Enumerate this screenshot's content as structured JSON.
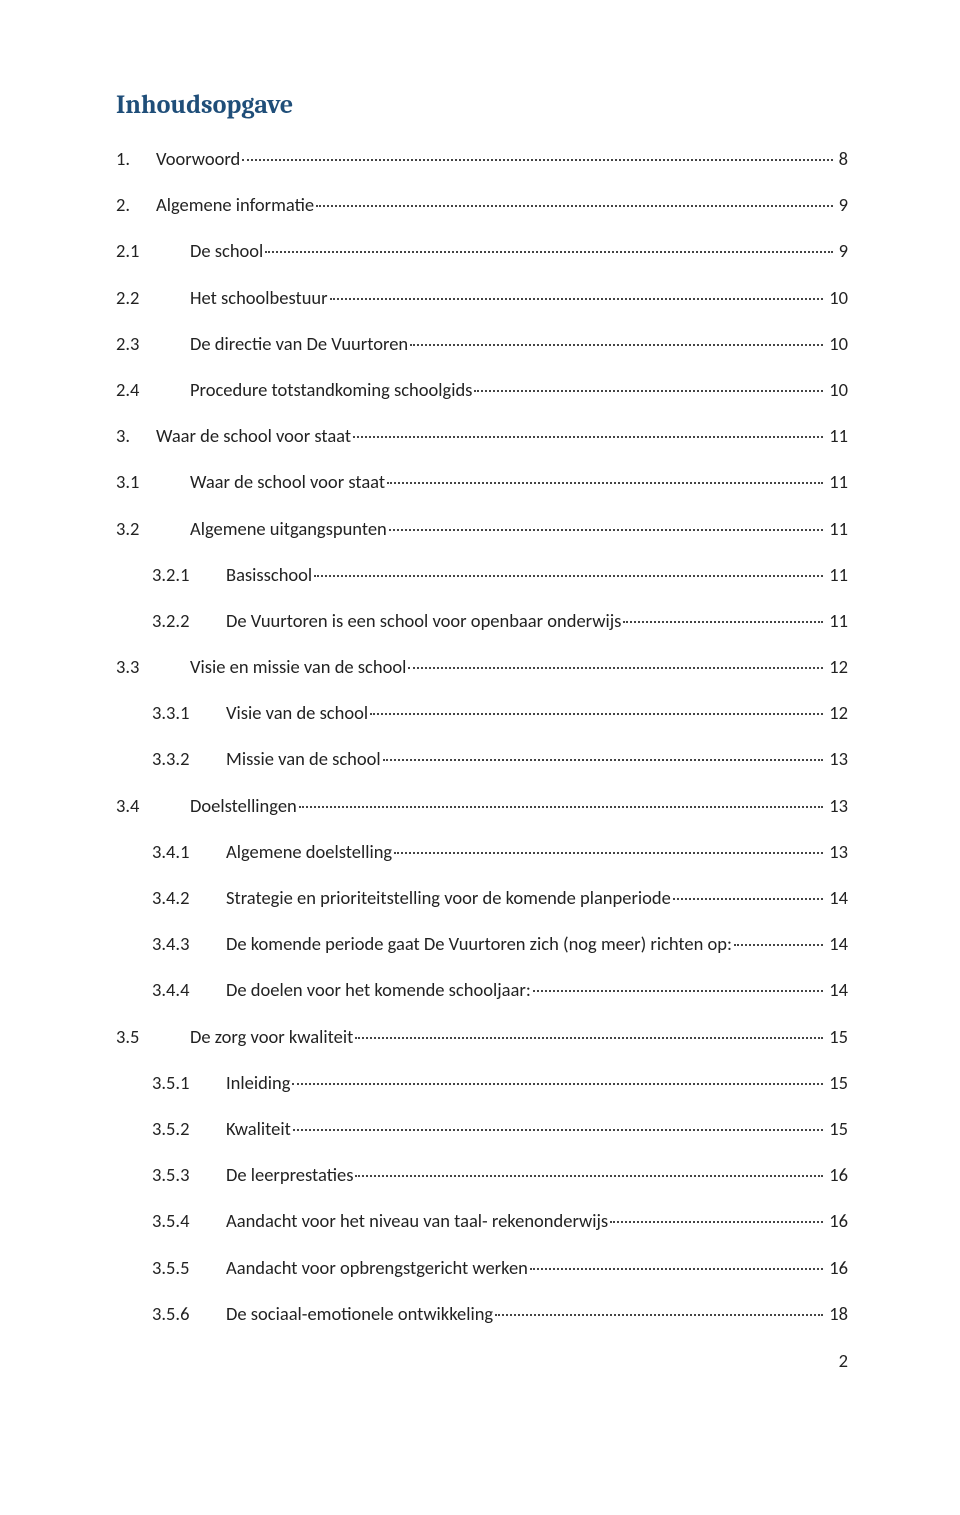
{
  "title": "Inhoudsopgave",
  "colors": {
    "title_color": "#1f4e79",
    "text_color": "#222222",
    "background": "#ffffff",
    "dot_color": "#444444"
  },
  "typography": {
    "title_font": "Cambria",
    "body_font": "Calibri",
    "title_size_pt": 19,
    "body_size_pt": 14,
    "title_weight": "bold"
  },
  "footer_page_number": "2",
  "entries": [
    {
      "level": 0,
      "num": "1.",
      "label": "Voorwoord",
      "page": "8"
    },
    {
      "level": 0,
      "num": "2.",
      "label": "Algemene informatie",
      "page": "9"
    },
    {
      "level": 1,
      "num": "2.1",
      "label": "De school",
      "page": "9"
    },
    {
      "level": 1,
      "num": "2.2",
      "label": "Het schoolbestuur",
      "page": "10"
    },
    {
      "level": 1,
      "num": "2.3",
      "label": "De directie van De Vuurtoren",
      "page": "10"
    },
    {
      "level": 1,
      "num": "2.4",
      "label": "Procedure totstandkoming schoolgids",
      "page": "10"
    },
    {
      "level": 0,
      "num": "3.",
      "label": "Waar de school voor staat",
      "page": "11"
    },
    {
      "level": 1,
      "num": "3.1",
      "label": "Waar de school voor staat",
      "page": "11"
    },
    {
      "level": 1,
      "num": "3.2",
      "label": "Algemene uitgangspunten",
      "page": "11"
    },
    {
      "level": 2,
      "num": "3.2.1",
      "label": "Basisschool",
      "page": "11"
    },
    {
      "level": 2,
      "num": "3.2.2",
      "label": "De Vuurtoren is een school voor openbaar onderwijs",
      "page": "11"
    },
    {
      "level": 1,
      "num": "3.3",
      "label": "Visie en missie van de school",
      "page": "12"
    },
    {
      "level": 2,
      "num": "3.3.1",
      "label": "Visie van de school",
      "page": "12"
    },
    {
      "level": 2,
      "num": "3.3.2",
      "label": "Missie van de school",
      "page": "13"
    },
    {
      "level": 1,
      "num": "3.4",
      "label": "Doelstellingen",
      "page": "13"
    },
    {
      "level": 2,
      "num": "3.4.1",
      "label": "Algemene doelstelling",
      "page": "13"
    },
    {
      "level": 2,
      "num": "3.4.2",
      "label": "Strategie en prioriteitstelling voor de komende planperiode",
      "page": "14"
    },
    {
      "level": 2,
      "num": "3.4.3",
      "label": "De komende periode gaat De Vuurtoren zich (nog meer) richten op:",
      "page": "14"
    },
    {
      "level": 2,
      "num": "3.4.4",
      "label": "De doelen voor het komende schooljaar:",
      "page": "14"
    },
    {
      "level": 1,
      "num": "3.5",
      "label": "De zorg voor kwaliteit",
      "page": "15"
    },
    {
      "level": 2,
      "num": "3.5.1",
      "label": "Inleiding",
      "page": "15"
    },
    {
      "level": 2,
      "num": "3.5.2",
      "label": "Kwaliteit",
      "page": "15"
    },
    {
      "level": 2,
      "num": "3.5.3",
      "label": "De leerprestaties",
      "page": "16"
    },
    {
      "level": 2,
      "num": "3.5.4",
      "label": "Aandacht voor het niveau van taal- rekenonderwijs",
      "page": "16"
    },
    {
      "level": 2,
      "num": "3.5.5",
      "label": "Aandacht voor opbrengstgericht werken",
      "page": "16"
    },
    {
      "level": 2,
      "num": "3.5.6",
      "label": "De sociaal-emotionele ontwikkeling",
      "page": "18"
    }
  ]
}
